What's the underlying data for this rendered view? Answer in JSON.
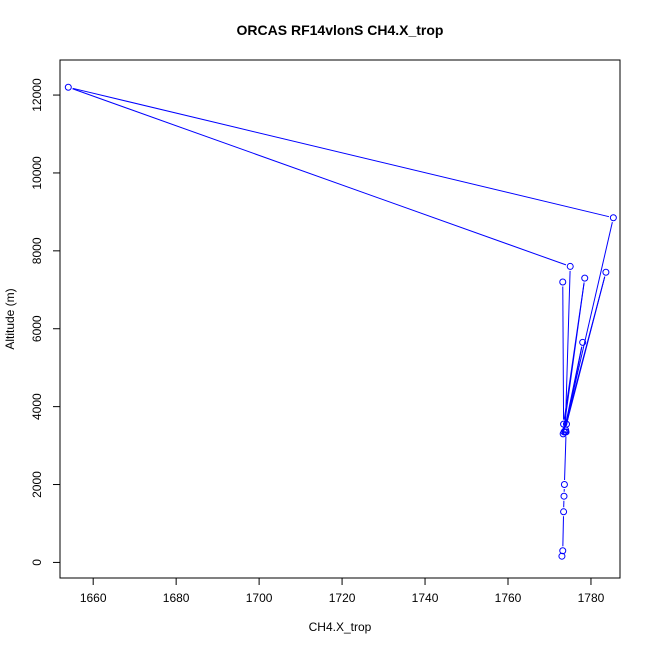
{
  "chart_data": {
    "type": "line",
    "title": "ORCAS RF14vlonS CH4.X_trop",
    "xlabel": "CH4.X_trop",
    "ylabel": "Altitude (m)",
    "xlim": [
      1652,
      1787
    ],
    "ylim": [
      -400,
      12900
    ],
    "xticks": [
      1660,
      1680,
      1700,
      1720,
      1740,
      1760,
      1780
    ],
    "yticks": [
      0,
      2000,
      4000,
      6000,
      8000,
      10000,
      12000
    ],
    "grid": false,
    "series": [
      {
        "color": "#0000ff",
        "x": [
          1773.0,
          1773.2,
          1773.4,
          1773.5,
          1773.6,
          1774.0,
          1773.8,
          1775.0,
          1654.0,
          1785.4,
          1773.5,
          1778.0,
          1773.9,
          1774.1,
          1783.6,
          1773.3,
          1778.5,
          1773.4,
          1773.2
        ],
        "y": [
          160,
          300,
          1300,
          1700,
          2000,
          3350,
          3350,
          7600,
          12200,
          8850,
          3350,
          5650,
          3400,
          3550,
          7450,
          3300,
          7300,
          3550,
          7200
        ]
      }
    ]
  }
}
